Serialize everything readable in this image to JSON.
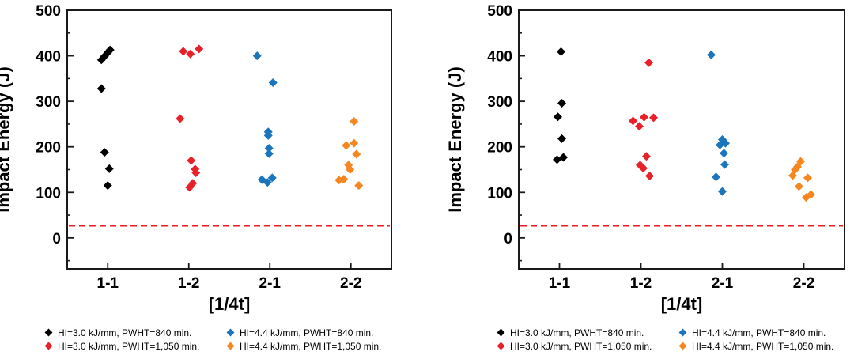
{
  "page": {
    "background": "#ffffff"
  },
  "colors": {
    "black": "#000000",
    "red": "#e8202a",
    "blue": "#1b75bc",
    "orange": "#f6861f",
    "axis": "#1a1a1a",
    "reference_line": "#ed1c24"
  },
  "chart_data": [
    {
      "type": "scatter",
      "title": "",
      "xlabel": "[1/4t]",
      "ylabel": "Impact Energy (J)",
      "categories": [
        "1-1",
        "1-2",
        "2-1",
        "2-2"
      ],
      "y_ticks": [
        0,
        100,
        200,
        300,
        400,
        500
      ],
      "y_minor_step": 50,
      "ylim": [
        -68,
        500
      ],
      "grid": false,
      "legend_position": "below",
      "reference_line": {
        "y": 27,
        "style": "dashed",
        "color_key": "reference_line"
      },
      "series": [
        {
          "name": "HI=3.0 kJ/mm, PWHT=840 min.",
          "color_key": "black",
          "marker": "diamond",
          "points": [
            {
              "cat": "1-1",
              "dx": -8,
              "y": 391
            },
            {
              "cat": "1-1",
              "dx": -4,
              "y": 399
            },
            {
              "cat": "1-1",
              "dx": 0,
              "y": 407
            },
            {
              "cat": "1-1",
              "dx": 3,
              "y": 413
            },
            {
              "cat": "1-1",
              "dx": -8,
              "y": 328
            },
            {
              "cat": "1-1",
              "dx": -4,
              "y": 188
            },
            {
              "cat": "1-1",
              "dx": 2,
              "y": 152
            },
            {
              "cat": "1-1",
              "dx": 0,
              "y": 115
            }
          ]
        },
        {
          "name": "HI=3.0 kJ/mm, PWHT=1,050 min.",
          "color_key": "red",
          "marker": "diamond",
          "points": [
            {
              "cat": "1-2",
              "dx": -7,
              "y": 410
            },
            {
              "cat": "1-2",
              "dx": 2,
              "y": 404
            },
            {
              "cat": "1-2",
              "dx": 13,
              "y": 415
            },
            {
              "cat": "1-2",
              "dx": -11,
              "y": 262
            },
            {
              "cat": "1-2",
              "dx": 3,
              "y": 170
            },
            {
              "cat": "1-2",
              "dx": 8,
              "y": 151
            },
            {
              "cat": "1-2",
              "dx": 9,
              "y": 143
            },
            {
              "cat": "1-2",
              "dx": 5,
              "y": 120
            },
            {
              "cat": "1-2",
              "dx": 1,
              "y": 111
            }
          ]
        },
        {
          "name": "HI=4.4 kJ/mm, PWHT=840 min.",
          "color_key": "blue",
          "marker": "diamond",
          "points": [
            {
              "cat": "2-1",
              "dx": -16,
              "y": 400
            },
            {
              "cat": "2-1",
              "dx": 4,
              "y": 341
            },
            {
              "cat": "2-1",
              "dx": -2,
              "y": 233
            },
            {
              "cat": "2-1",
              "dx": -2,
              "y": 225
            },
            {
              "cat": "2-1",
              "dx": -1,
              "y": 197
            },
            {
              "cat": "2-1",
              "dx": -1,
              "y": 185
            },
            {
              "cat": "2-1",
              "dx": 3,
              "y": 132
            },
            {
              "cat": "2-1",
              "dx": -10,
              "y": 128
            },
            {
              "cat": "2-1",
              "dx": -3,
              "y": 122
            }
          ]
        },
        {
          "name": "HI=4.4 kJ/mm, PWHT=1,050 min.",
          "color_key": "orange",
          "marker": "diamond",
          "points": [
            {
              "cat": "2-2",
              "dx": 4,
              "y": 256
            },
            {
              "cat": "2-2",
              "dx": 4,
              "y": 208
            },
            {
              "cat": "2-2",
              "dx": -6,
              "y": 203
            },
            {
              "cat": "2-2",
              "dx": 7,
              "y": 184
            },
            {
              "cat": "2-2",
              "dx": -3,
              "y": 160
            },
            {
              "cat": "2-2",
              "dx": -1,
              "y": 150
            },
            {
              "cat": "2-2",
              "dx": -9,
              "y": 129
            },
            {
              "cat": "2-2",
              "dx": -15,
              "y": 127
            },
            {
              "cat": "2-2",
              "dx": 10,
              "y": 115
            }
          ]
        }
      ]
    },
    {
      "type": "scatter",
      "title": "",
      "xlabel": "[1/4t]",
      "ylabel": "Impact Energy (J)",
      "categories": [
        "1-1",
        "1-2",
        "2-1",
        "2-2"
      ],
      "y_ticks": [
        0,
        100,
        200,
        300,
        400,
        500
      ],
      "y_minor_step": 50,
      "ylim": [
        -68,
        500
      ],
      "grid": false,
      "legend_position": "below",
      "reference_line": {
        "y": 27,
        "style": "dashed",
        "color_key": "reference_line"
      },
      "series": [
        {
          "name": "HI=3.0 kJ/mm, PWHT=840 min.",
          "color_key": "black",
          "marker": "diamond",
          "points": [
            {
              "cat": "1-1",
              "dx": 2,
              "y": 409
            },
            {
              "cat": "1-1",
              "dx": 3,
              "y": 296
            },
            {
              "cat": "1-1",
              "dx": -2,
              "y": 266
            },
            {
              "cat": "1-1",
              "dx": 3,
              "y": 218
            },
            {
              "cat": "1-1",
              "dx": 5,
              "y": 177
            },
            {
              "cat": "1-1",
              "dx": -3,
              "y": 172
            }
          ]
        },
        {
          "name": "HI=3.0 kJ/mm, PWHT=1,050 min.",
          "color_key": "red",
          "marker": "diamond",
          "points": [
            {
              "cat": "1-2",
              "dx": 10,
              "y": 385
            },
            {
              "cat": "1-2",
              "dx": 4,
              "y": 265
            },
            {
              "cat": "1-2",
              "dx": 16,
              "y": 264
            },
            {
              "cat": "1-2",
              "dx": -10,
              "y": 257
            },
            {
              "cat": "1-2",
              "dx": -2,
              "y": 245
            },
            {
              "cat": "1-2",
              "dx": 7,
              "y": 179
            },
            {
              "cat": "1-2",
              "dx": -1,
              "y": 160
            },
            {
              "cat": "1-2",
              "dx": 3,
              "y": 153
            },
            {
              "cat": "1-2",
              "dx": 11,
              "y": 136
            }
          ]
        },
        {
          "name": "HI=4.4 kJ/mm, PWHT=840 min.",
          "color_key": "blue",
          "marker": "diamond",
          "points": [
            {
              "cat": "2-1",
              "dx": -14,
              "y": 402
            },
            {
              "cat": "2-1",
              "dx": 0,
              "y": 216
            },
            {
              "cat": "2-1",
              "dx": 4,
              "y": 208
            },
            {
              "cat": "2-1",
              "dx": -3,
              "y": 204
            },
            {
              "cat": "2-1",
              "dx": 2,
              "y": 186
            },
            {
              "cat": "2-1",
              "dx": 3,
              "y": 161
            },
            {
              "cat": "2-1",
              "dx": -8,
              "y": 134
            },
            {
              "cat": "2-1",
              "dx": 0,
              "y": 102
            }
          ]
        },
        {
          "name": "HI=4.4 kJ/mm, PWHT=1,050 min.",
          "color_key": "orange",
          "marker": "diamond",
          "points": [
            {
              "cat": "2-2",
              "dx": -4,
              "y": 168
            },
            {
              "cat": "2-2",
              "dx": -8,
              "y": 156
            },
            {
              "cat": "2-2",
              "dx": -11,
              "y": 150
            },
            {
              "cat": "2-2",
              "dx": -14,
              "y": 137
            },
            {
              "cat": "2-2",
              "dx": 5,
              "y": 132
            },
            {
              "cat": "2-2",
              "dx": -6,
              "y": 113
            },
            {
              "cat": "2-2",
              "dx": 9,
              "y": 95
            },
            {
              "cat": "2-2",
              "dx": 3,
              "y": 89
            }
          ]
        }
      ]
    }
  ]
}
